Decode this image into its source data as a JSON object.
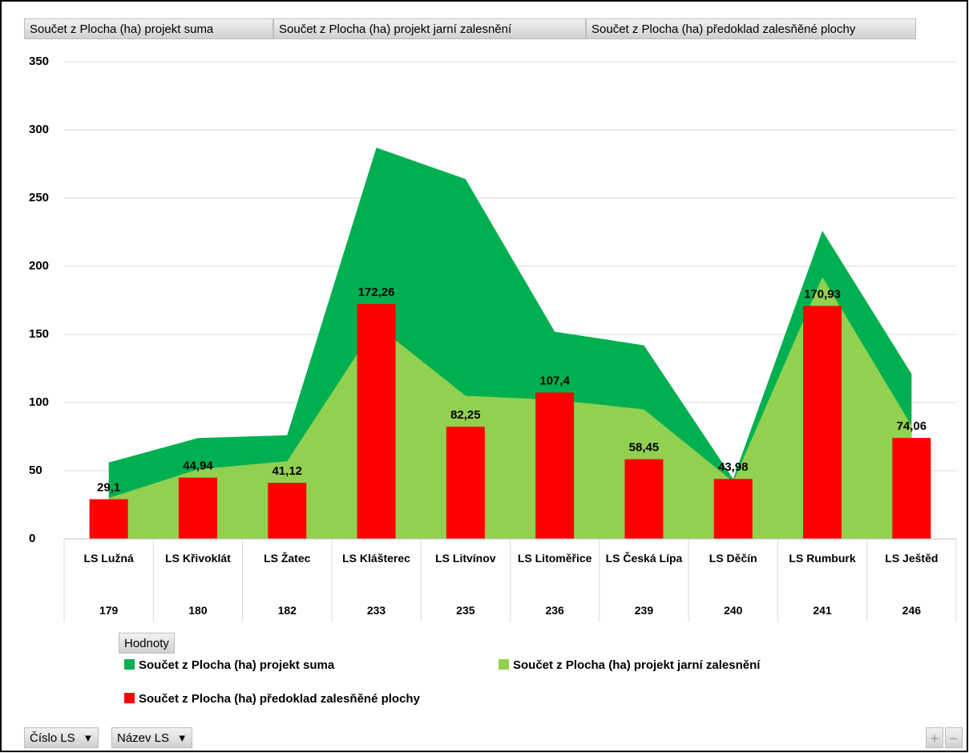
{
  "chart_data": {
    "type": "area-bar",
    "value_buttons": [
      "Součet z Plocha (ha) projekt suma",
      "Součet z Plocha (ha) projekt jarní zalesnění",
      "Součet z Plocha (ha) předoklad zalesňěné plochy"
    ],
    "categories": [
      "LS Lužná",
      "LS Křivoklát",
      "LS Žatec",
      "LS Klášterec",
      "LS Litvínov",
      "LS Litoměřice",
      "LS Česká Lípa",
      "LS Děčín",
      "LS Rumburk",
      "LS Ještěd"
    ],
    "category_codes": [
      "179",
      "180",
      "182",
      "233",
      "235",
      "236",
      "239",
      "240",
      "241",
      "246"
    ],
    "series": [
      {
        "name": "Součet z Plocha (ha) projekt suma",
        "kind": "area",
        "color": "#00b050",
        "values": [
          56,
          74,
          76,
          287,
          264,
          152,
          142,
          44,
          226,
          121
        ]
      },
      {
        "name": "Součet z Plocha (ha) projekt jarní zalesnění",
        "kind": "area",
        "color": "#92d050",
        "values": [
          30,
          51,
          57,
          157,
          105,
          102,
          95,
          42,
          192,
          83
        ]
      },
      {
        "name": "Součet z Plocha (ha) předoklad zalesňěné plochy",
        "kind": "bar",
        "color": "#ff0000",
        "values": [
          29.1,
          44.94,
          41.12,
          172.26,
          82.25,
          107.4,
          58.45,
          43.98,
          170.93,
          74.06
        ],
        "value_labels": [
          "29,1",
          "44,94",
          "41,12",
          "172,26",
          "82,25",
          "107,4",
          "58,45",
          "43,98",
          "170,93",
          "74,06"
        ]
      }
    ],
    "ylim": [
      0,
      350
    ],
    "yticks": [
      0,
      50,
      100,
      150,
      200,
      250,
      300,
      350
    ],
    "grid": true,
    "legend_title": "Hodnoty",
    "axis_buttons": [
      "Číslo LS",
      "Název LS"
    ],
    "zoom_buttons": [
      "+",
      "−"
    ]
  }
}
